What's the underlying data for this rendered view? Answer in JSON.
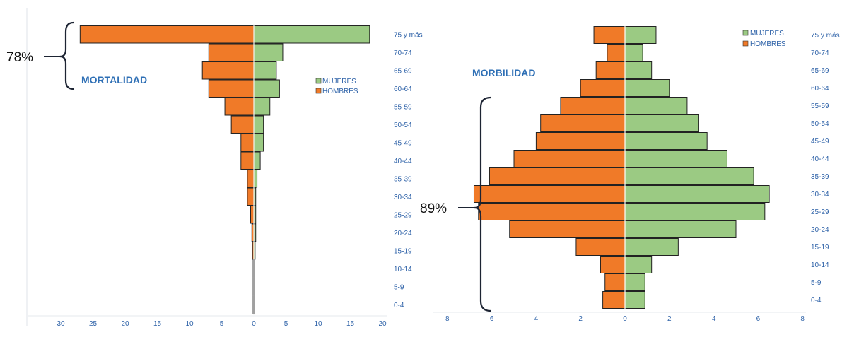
{
  "chart_data": [
    {
      "type": "bar",
      "orientation": "horizontal-diverging",
      "title": "MORTALIDAD",
      "categories": [
        "75 y más",
        "70-74",
        "65-69",
        "60-64",
        "55-59",
        "50-54",
        "45-49",
        "40-44",
        "35-39",
        "30-34",
        "25-29",
        "20-24",
        "15-19",
        "10-14",
        "5-9",
        "0-4"
      ],
      "series": [
        {
          "name": "MUJERES",
          "values": [
            18,
            4.5,
            3.5,
            4,
            2.5,
            1.5,
            1.5,
            1,
            0.5,
            0.3,
            0.3,
            0.3,
            0.2,
            0.1,
            0.1,
            0.1
          ]
        },
        {
          "name": "HOMBRES",
          "values": [
            27,
            7,
            8,
            7,
            4.5,
            3.5,
            2,
            2,
            1,
            1,
            0.5,
            0.3,
            0.2,
            0.1,
            0.1,
            0.1
          ]
        }
      ],
      "xticks": [
        "30",
        "25",
        "20",
        "15",
        "10",
        "5",
        "0",
        "5",
        "10",
        "15",
        "20"
      ],
      "xlim": [
        -30,
        20
      ],
      "legend": "right",
      "annotation": "78%"
    },
    {
      "type": "bar",
      "orientation": "horizontal-diverging",
      "title": "MORBILIDAD",
      "categories": [
        "75 y más",
        "70-74",
        "65-69",
        "60-64",
        "55-59",
        "50-54",
        "45-49",
        "40-44",
        "35-39",
        "30-34",
        "25-29",
        "20-24",
        "15-19",
        "10-14",
        "5-9",
        "0-4"
      ],
      "series": [
        {
          "name": "MUJERES",
          "values": [
            1.4,
            0.8,
            1.2,
            2,
            2.8,
            3.3,
            3.7,
            4.6,
            5.8,
            6.5,
            6.3,
            5,
            2.4,
            1.2,
            0.9,
            0.9
          ]
        },
        {
          "name": "HOMBRES",
          "values": [
            1.4,
            0.8,
            1.3,
            2,
            2.9,
            3.8,
            4,
            5,
            6.1,
            6.8,
            6.6,
            5.2,
            2.2,
            1.1,
            0.9,
            1
          ]
        }
      ],
      "xticks": [
        "8",
        "6",
        "4",
        "2",
        "0",
        "2",
        "4",
        "6",
        "8"
      ],
      "xlim": [
        -8,
        8
      ],
      "legend": "top-right",
      "annotation": "89%"
    }
  ]
}
